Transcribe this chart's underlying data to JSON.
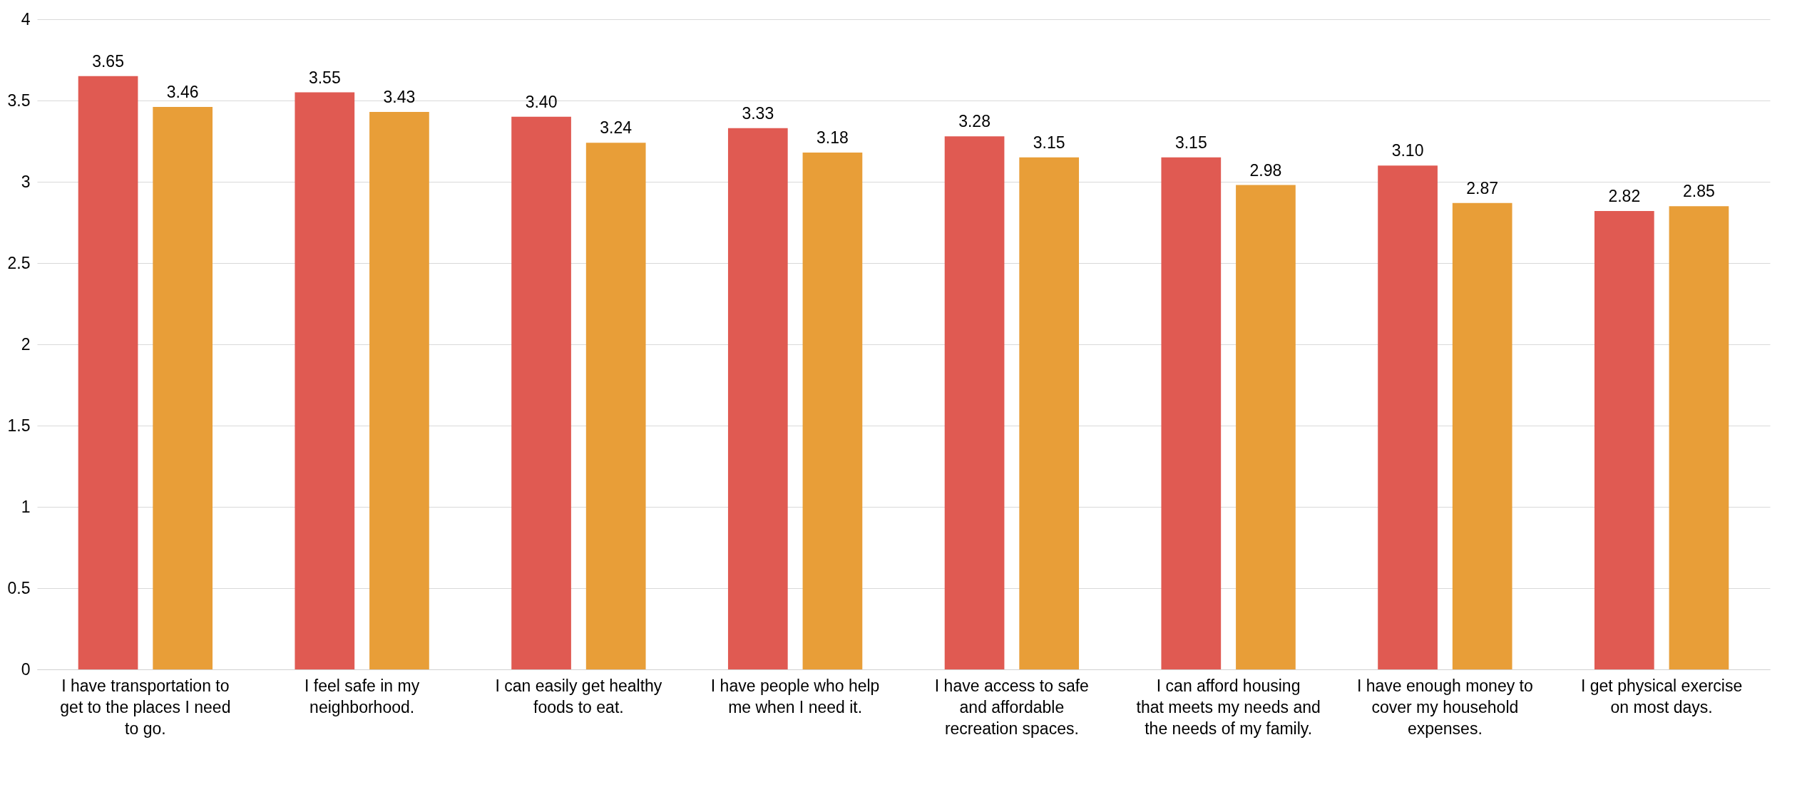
{
  "chart_data": {
    "type": "bar",
    "categories": [
      "I have transportation to get to the places I need to go.",
      "I feel safe in my neighborhood.",
      "I can easily get healthy foods to eat.",
      "I have people who help me when I need it.",
      "I have access to safe and affordable recreation spaces.",
      "I can afford housing that meets my needs and the needs of my family.",
      "I have enough money to cover my household expenses.",
      "I get physical exercise on most days."
    ],
    "series": [
      {
        "color": "#e05a52",
        "values": [
          3.65,
          3.55,
          3.4,
          3.33,
          3.28,
          3.15,
          3.1,
          2.82
        ],
        "value_labels": [
          "3.65",
          "3.55",
          "3.40",
          "3.33",
          "3.28",
          "3.15",
          "3.10",
          "2.82"
        ]
      },
      {
        "color": "#e89e38",
        "values": [
          3.46,
          3.43,
          3.24,
          3.18,
          3.15,
          2.98,
          2.87,
          2.85
        ],
        "value_labels": [
          "3.46",
          "3.43",
          "3.24",
          "3.18",
          "3.15",
          "2.98",
          "2.87",
          "2.85"
        ]
      }
    ],
    "ylim": [
      0,
      4
    ],
    "yticks": [
      0,
      0.5,
      1,
      1.5,
      2,
      2.5,
      3,
      3.5,
      4
    ],
    "grid": "y",
    "legend": false
  }
}
